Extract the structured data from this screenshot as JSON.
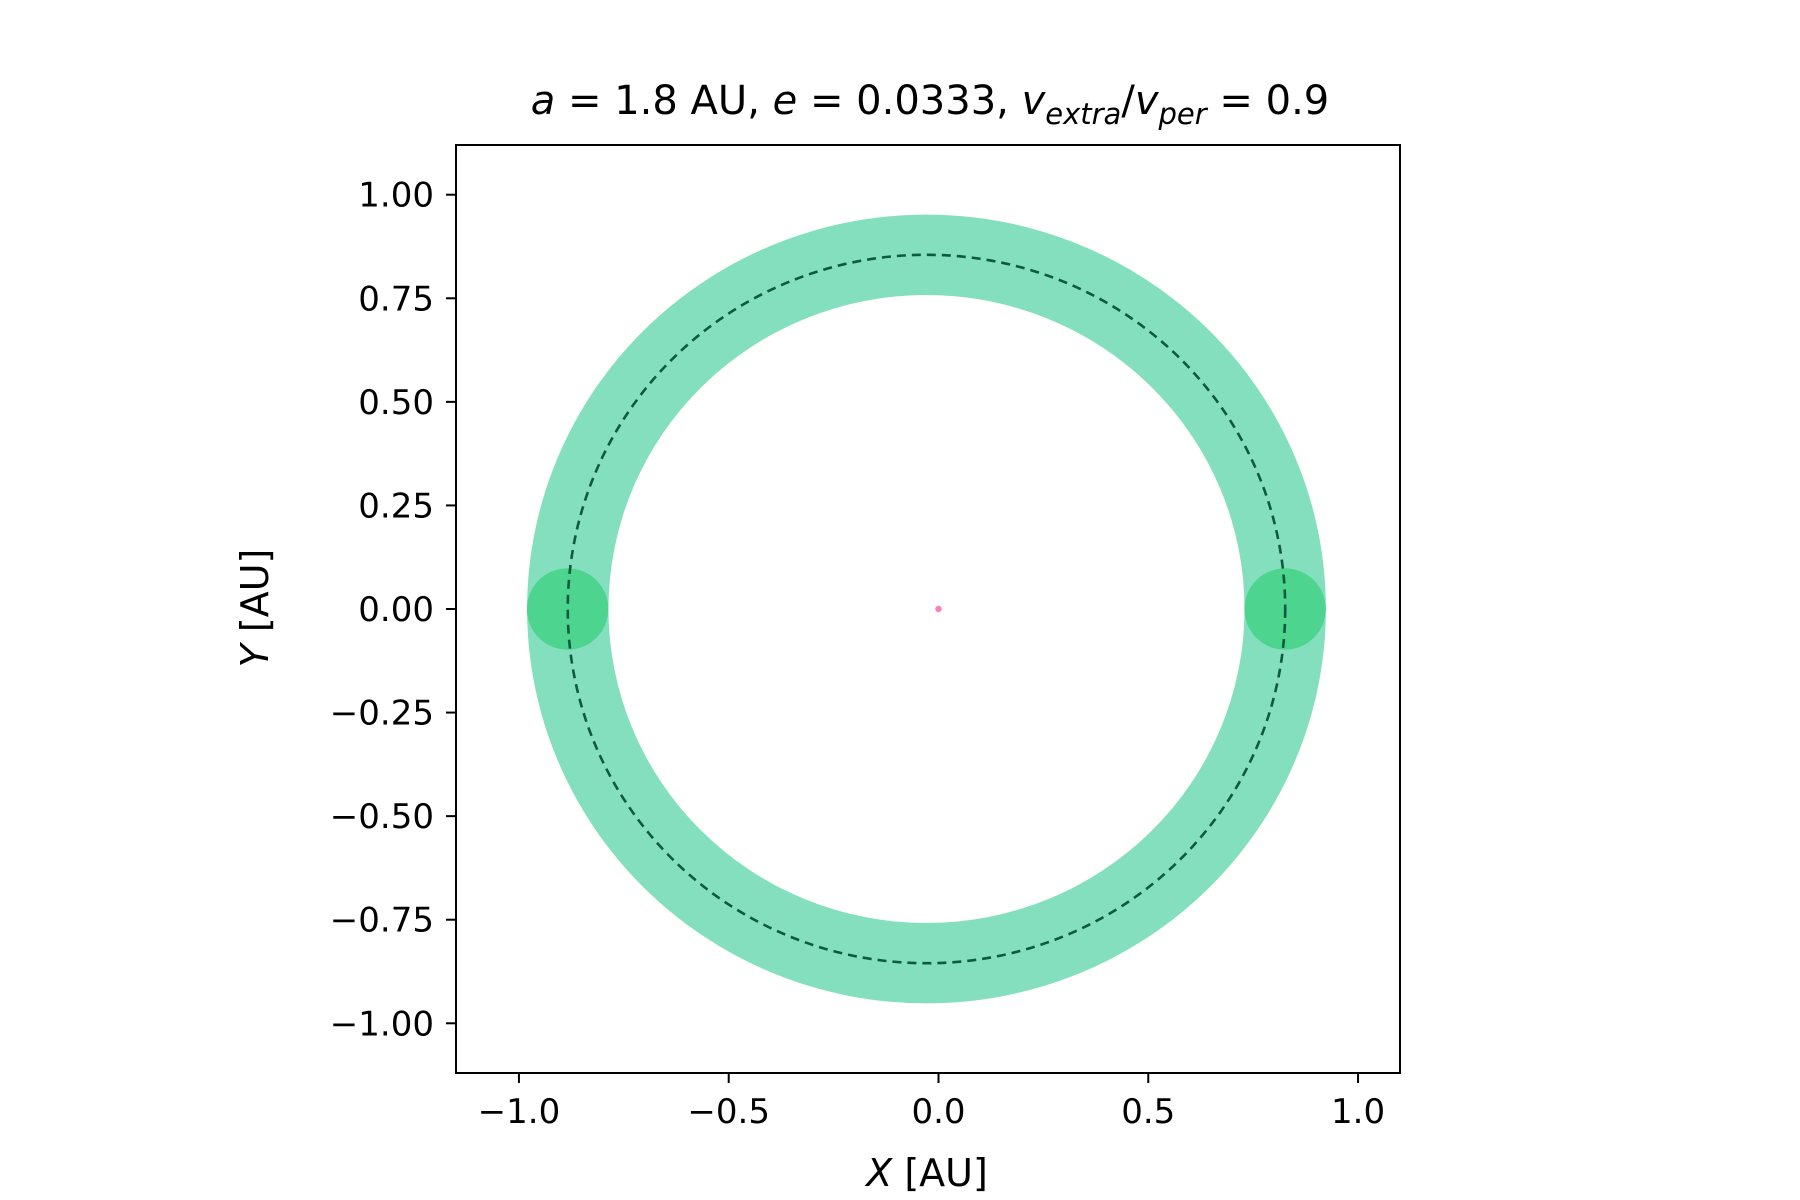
{
  "chart_data": {
    "type": "scatter",
    "title": {
      "a_sym": "a",
      "a_text": " = 1.8 AU, ",
      "e_sym": "e",
      "e_text": " = 0.0333, ",
      "v1_sym": "v",
      "v1_sub": "extra",
      "slash": "/",
      "v2_sym": "v",
      "v2_sub": "per",
      "v_text": " = 0.9"
    },
    "xlabel": {
      "sym": "X",
      "unit": " [AU]"
    },
    "ylabel": {
      "sym": "Y",
      "unit": " [AU]"
    },
    "xlim": [
      -1.15,
      1.1
    ],
    "ylim": [
      -1.12,
      1.12
    ],
    "xticks": [
      {
        "value": -1.0,
        "label": "−1.0"
      },
      {
        "value": -0.5,
        "label": "−0.5"
      },
      {
        "value": 0.0,
        "label": "0.0"
      },
      {
        "value": 0.5,
        "label": "0.5"
      },
      {
        "value": 1.0,
        "label": "1.0"
      }
    ],
    "yticks": [
      {
        "value": 1.0,
        "label": "1.00"
      },
      {
        "value": 0.75,
        "label": "0.75"
      },
      {
        "value": 0.5,
        "label": "0.50"
      },
      {
        "value": 0.25,
        "label": "0.25"
      },
      {
        "value": 0.0,
        "label": "0.00"
      },
      {
        "value": -0.25,
        "label": "−0.25"
      },
      {
        "value": -0.5,
        "label": "−0.50"
      },
      {
        "value": -0.75,
        "label": "−0.75"
      },
      {
        "value": -1.0,
        "label": "−1.00"
      }
    ],
    "orbit": {
      "center_x": -0.0286,
      "center_y": 0.0,
      "semi_major_x": 0.855,
      "semi_minor_y": 0.855,
      "band_half_width": 0.097,
      "band_color": "#84dfbf",
      "dash_color": "#0e5a3c"
    },
    "bodies": [
      {
        "x": 0.826,
        "y": 0.0,
        "r": 0.097,
        "color": "#4dd48f"
      },
      {
        "x": -0.884,
        "y": 0.0,
        "r": 0.097,
        "color": "#4dd48f"
      }
    ],
    "star": {
      "x": 0.0,
      "y": 0.0,
      "color": "#ff7eb9"
    },
    "grid": false,
    "legend": "none"
  }
}
